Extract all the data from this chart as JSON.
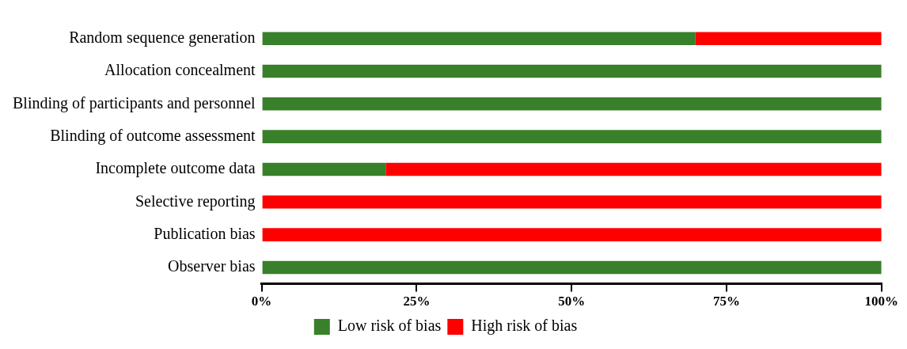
{
  "chart_data": {
    "type": "bar",
    "orientation": "horizontal",
    "stacked": true,
    "categories": [
      "Random sequence generation",
      "Allocation concealment",
      "Blinding of participants and personnel",
      "Blinding of outcome assessment",
      "Incomplete outcome data",
      "Selective reporting",
      "Publication bias",
      "Observer bias"
    ],
    "series": [
      {
        "name": "Low risk of bias",
        "color": "#38802a",
        "values": [
          70,
          100,
          100,
          100,
          20,
          0,
          0,
          100
        ]
      },
      {
        "name": "High risk of bias",
        "color": "#ff0000",
        "values": [
          30,
          0,
          0,
          0,
          80,
          100,
          100,
          0
        ]
      }
    ],
    "xlim": [
      0,
      100
    ],
    "xticks": [
      {
        "value": 0,
        "label": "0%"
      },
      {
        "value": 25,
        "label": "25%"
      },
      {
        "value": 50,
        "label": "50%"
      },
      {
        "value": 75,
        "label": "75%"
      },
      {
        "value": 100,
        "label": "100%"
      }
    ],
    "grid": false,
    "legend": "bottom"
  }
}
